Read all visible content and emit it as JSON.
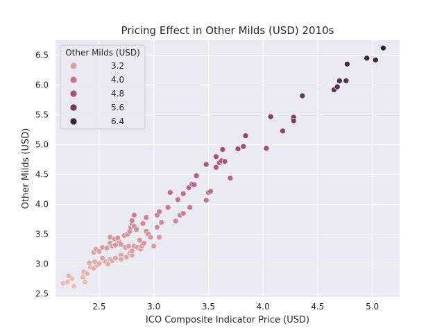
{
  "chart_data": {
    "type": "scatter",
    "title": "Pricing Effect in Other Milds (USD) 2010s",
    "xlabel": "ICO Composite Indicator Price (USD)",
    "ylabel": "Other Milds (USD)",
    "xlim": [
      2.1,
      5.25
    ],
    "ylim": [
      2.45,
      6.75
    ],
    "xticks": [
      "2.5",
      "3.0",
      "3.5",
      "4.0",
      "4.5",
      "5.0"
    ],
    "yticks": [
      "2.5",
      "3.0",
      "3.5",
      "4.0",
      "4.5",
      "5.0",
      "5.5",
      "6.0",
      "6.5"
    ],
    "grid": true,
    "background_color": "#eaeaf2",
    "hue": {
      "name": "Other Milds (USD)",
      "legend_values": [
        "3.2",
        "4.0",
        "4.8",
        "5.6",
        "6.4"
      ],
      "color_low": "#edc1b4",
      "color_high": "#2d1e3e",
      "range": [
        2.6,
        6.65
      ]
    },
    "legend_position": "upper-left",
    "points": [
      {
        "x": 2.17,
        "y": 2.68
      },
      {
        "x": 2.21,
        "y": 2.7
      },
      {
        "x": 2.25,
        "y": 2.76
      },
      {
        "x": 2.27,
        "y": 2.63
      },
      {
        "x": 2.22,
        "y": 2.8
      },
      {
        "x": 2.35,
        "y": 2.78
      },
      {
        "x": 2.37,
        "y": 2.7
      },
      {
        "x": 2.36,
        "y": 2.87
      },
      {
        "x": 2.39,
        "y": 2.84
      },
      {
        "x": 2.42,
        "y": 2.95
      },
      {
        "x": 2.45,
        "y": 2.93
      },
      {
        "x": 2.48,
        "y": 2.98
      },
      {
        "x": 2.41,
        "y": 3.02
      },
      {
        "x": 2.46,
        "y": 3.04
      },
      {
        "x": 2.5,
        "y": 3.01
      },
      {
        "x": 2.55,
        "y": 3.05
      },
      {
        "x": 2.58,
        "y": 3.0
      },
      {
        "x": 2.53,
        "y": 3.1
      },
      {
        "x": 2.6,
        "y": 3.08
      },
      {
        "x": 2.62,
        "y": 3.06
      },
      {
        "x": 2.65,
        "y": 3.1
      },
      {
        "x": 2.7,
        "y": 3.15
      },
      {
        "x": 2.7,
        "y": 3.08
      },
      {
        "x": 2.75,
        "y": 3.12
      },
      {
        "x": 2.78,
        "y": 3.18
      },
      {
        "x": 2.8,
        "y": 3.15
      },
      {
        "x": 2.8,
        "y": 3.22
      },
      {
        "x": 2.45,
        "y": 3.2
      },
      {
        "x": 2.47,
        "y": 3.25
      },
      {
        "x": 2.5,
        "y": 3.21
      },
      {
        "x": 2.53,
        "y": 3.28
      },
      {
        "x": 2.57,
        "y": 3.27
      },
      {
        "x": 2.6,
        "y": 3.35
      },
      {
        "x": 2.62,
        "y": 3.3
      },
      {
        "x": 2.65,
        "y": 3.32
      },
      {
        "x": 2.68,
        "y": 3.38
      },
      {
        "x": 2.6,
        "y": 3.45
      },
      {
        "x": 2.64,
        "y": 3.42
      },
      {
        "x": 2.67,
        "y": 3.44
      },
      {
        "x": 2.7,
        "y": 3.33
      },
      {
        "x": 2.73,
        "y": 3.48
      },
      {
        "x": 2.74,
        "y": 3.28
      },
      {
        "x": 2.76,
        "y": 3.5
      },
      {
        "x": 2.77,
        "y": 3.3
      },
      {
        "x": 2.78,
        "y": 3.55
      },
      {
        "x": 2.79,
        "y": 3.62
      },
      {
        "x": 2.8,
        "y": 3.68
      },
      {
        "x": 2.82,
        "y": 3.63
      },
      {
        "x": 2.84,
        "y": 3.58
      },
      {
        "x": 2.82,
        "y": 3.3
      },
      {
        "x": 2.85,
        "y": 3.28
      },
      {
        "x": 2.87,
        "y": 3.4
      },
      {
        "x": 2.88,
        "y": 3.25
      },
      {
        "x": 2.89,
        "y": 3.3
      },
      {
        "x": 2.91,
        "y": 3.35
      },
      {
        "x": 2.9,
        "y": 3.68
      },
      {
        "x": 2.93,
        "y": 3.55
      },
      {
        "x": 2.95,
        "y": 3.5
      },
      {
        "x": 2.97,
        "y": 3.45
      },
      {
        "x": 3.0,
        "y": 3.3
      },
      {
        "x": 3.03,
        "y": 3.62
      },
      {
        "x": 3.05,
        "y": 3.45
      },
      {
        "x": 2.8,
        "y": 3.73
      },
      {
        "x": 2.82,
        "y": 3.82
      },
      {
        "x": 2.93,
        "y": 3.78
      },
      {
        "x": 3.03,
        "y": 3.82
      },
      {
        "x": 3.05,
        "y": 3.88
      },
      {
        "x": 3.07,
        "y": 3.7
      },
      {
        "x": 3.13,
        "y": 3.95
      },
      {
        "x": 3.15,
        "y": 4.2
      },
      {
        "x": 3.2,
        "y": 3.72
      },
      {
        "x": 3.22,
        "y": 4.08
      },
      {
        "x": 3.24,
        "y": 3.82
      },
      {
        "x": 3.27,
        "y": 3.85
      },
      {
        "x": 3.27,
        "y": 4.18
      },
      {
        "x": 3.32,
        "y": 4.28
      },
      {
        "x": 3.33,
        "y": 3.95
      },
      {
        "x": 3.35,
        "y": 4.34
      },
      {
        "x": 3.37,
        "y": 4.33
      },
      {
        "x": 3.39,
        "y": 4.48
      },
      {
        "x": 3.48,
        "y": 4.07
      },
      {
        "x": 3.48,
        "y": 4.67
      },
      {
        "x": 3.5,
        "y": 4.2
      },
      {
        "x": 3.52,
        "y": 4.22
      },
      {
        "x": 3.57,
        "y": 4.62
      },
      {
        "x": 3.57,
        "y": 4.8
      },
      {
        "x": 3.6,
        "y": 4.7
      },
      {
        "x": 3.62,
        "y": 4.73
      },
      {
        "x": 3.63,
        "y": 4.92
      },
      {
        "x": 3.65,
        "y": 4.72
      },
      {
        "x": 3.7,
        "y": 4.44
      },
      {
        "x": 3.77,
        "y": 4.93
      },
      {
        "x": 3.82,
        "y": 4.97
      },
      {
        "x": 3.84,
        "y": 5.15
      },
      {
        "x": 4.03,
        "y": 4.94
      },
      {
        "x": 4.07,
        "y": 5.47
      },
      {
        "x": 4.18,
        "y": 5.23
      },
      {
        "x": 4.28,
        "y": 5.46
      },
      {
        "x": 4.28,
        "y": 5.4
      },
      {
        "x": 4.36,
        "y": 5.82
      },
      {
        "x": 4.65,
        "y": 5.92
      },
      {
        "x": 4.68,
        "y": 5.97
      },
      {
        "x": 4.7,
        "y": 6.07
      },
      {
        "x": 4.76,
        "y": 6.07
      },
      {
        "x": 4.77,
        "y": 6.35
      },
      {
        "x": 4.95,
        "y": 6.45
      },
      {
        "x": 5.03,
        "y": 6.42
      },
      {
        "x": 5.1,
        "y": 6.62
      }
    ]
  }
}
